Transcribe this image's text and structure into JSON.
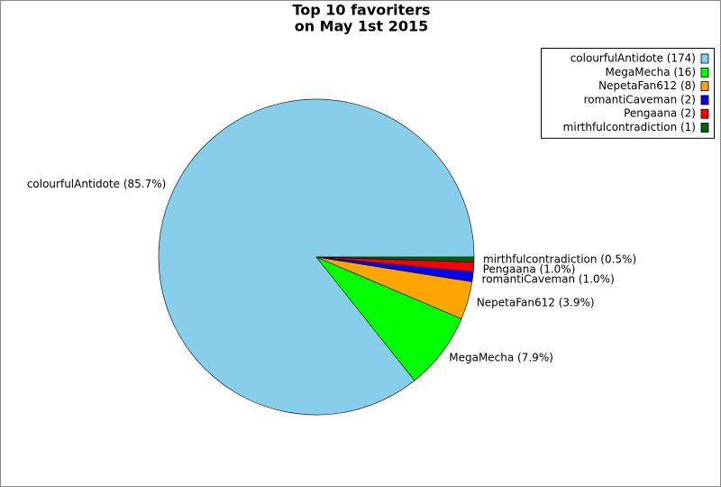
{
  "chart_data": {
    "type": "pie",
    "title": [
      "Top 10 favoriters",
      "on May 1st 2015"
    ],
    "values": [
      85.7,
      7.9,
      3.9,
      1.0,
      1.0,
      0.5
    ],
    "value_labels": [
      "colourfulAntidote (85.7%)",
      "MegaMecha (7.9%)",
      "NepetaFan612 (3.9%)",
      "romantiCaveman (1.0%)",
      "Pengaana (1.0%)",
      "mirthfulcontradiction (0.5%)"
    ],
    "legend_labels": [
      "colourfulAntidote (174)",
      "MegaMecha (16)",
      "NepetaFan612 (8)",
      "romantiCaveman (2)",
      "Pengaana (2)",
      "mirthfulcontradiction (1)"
    ],
    "colors": [
      "#87ceeb",
      "#00ff00",
      "#ffa500",
      "#0000ff",
      "#ff0000",
      "#006400"
    ],
    "legend": "upper right"
  }
}
